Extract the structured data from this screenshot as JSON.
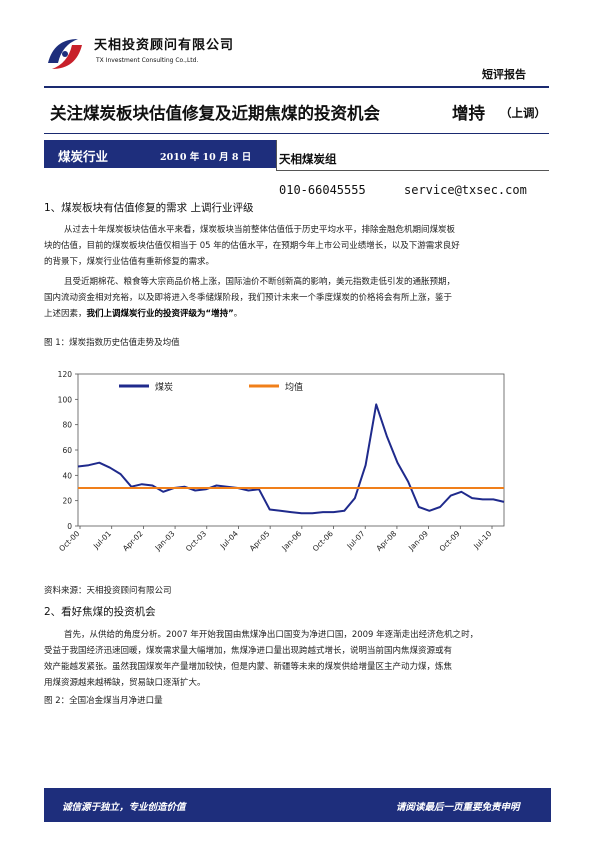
{
  "header": {
    "company_cn": "天相投资顾问有限公司",
    "company_en": "TX Investment Consulting Co.,Ltd.",
    "report_type": "短评报告"
  },
  "title": {
    "text": "关注煤炭板块估值修复及近期焦煤的投资机会",
    "rating": "增持",
    "rating_change": "（上调）"
  },
  "banner": {
    "industry": "煤炭行业",
    "date": "2010 年 10 月 8 日",
    "team": "天相煤炭组",
    "phone": "010-66045555",
    "email": "service@txsec.com"
  },
  "section1": {
    "heading": "1、煤炭板块有估值修复的需求  上调行业评级",
    "para1": [
      "从过去十年煤炭板块估值水平来看，煤炭板块当前整体估值低于历史平均水平，排除金融危机期间煤炭板",
      "块的估值，目前的煤炭板块估值仅相当于 05 年的估值水平，在预期今年上市公司业绩增长，以及下游需求良好",
      "的背景下，煤炭行业估值有重新修复的需求。"
    ],
    "para2_lines": [
      "且受近期棉花、粮食等大宗商品价格上涨，国际油价不断创新高的影响，美元指数走低引发的通胀预期，",
      "国内流动资金相对充裕，以及即将进入冬季储煤阶段，我们预计未来一个季度煤炭的价格将会有所上涨，鉴于"
    ],
    "para2_last_plain": "上述因素，",
    "para2_last_bold": "我们上调煤炭行业的投资评级为“增持”",
    "para2_last_end": "。"
  },
  "figure1": {
    "caption": "图 1：煤炭指数历史估值走势及均值",
    "source": "资料来源：天相投资顾问有限公司"
  },
  "section2": {
    "heading": "2、看好焦煤的投资机会",
    "para": [
      "首先，从供给的角度分析。2007 年开始我国由焦煤净出口国变为净进口国，2009 年逐渐走出经济危机之时，",
      "受益于我国经济迅速回暖，煤炭需求量大幅增加，焦煤净进口量出现跨越式增长，说明当前国内焦煤资源或有",
      "效产能越发紧张。虽然我国煤炭年产量增加较快，但是内蒙、新疆等未来的煤炭供给增量区主产动力煤，炼焦",
      "用煤资源越来越稀缺，贸易缺口逐渐扩大。"
    ]
  },
  "figure2": {
    "caption": "图 2：全国冶金煤当月净进口量"
  },
  "footer": {
    "left": "诚信源于独立，专业创造价值",
    "right": "请阅读最后一页重要免责申明"
  },
  "colors": {
    "brand_navy": "#1e2e7c",
    "series_index": "#1f2a8c",
    "series_mean": "#f07f1a"
  },
  "chart_data": {
    "type": "line",
    "title": "",
    "xlabel": "",
    "ylabel": "",
    "ylim": [
      0,
      120
    ],
    "yticks": [
      0,
      20,
      40,
      60,
      80,
      100,
      120
    ],
    "grid": false,
    "legend_position": "top",
    "x_tick_labels": [
      "Oct-00",
      "Jul-01",
      "Apr-02",
      "Jan-03",
      "Oct-03",
      "Jul-04",
      "Apr-05",
      "Jan-06",
      "Oct-06",
      "Jul-07",
      "Apr-08",
      "Jan-09",
      "Oct-09",
      "Jul-10"
    ],
    "x": [
      "Oct-00",
      "Jan-01",
      "Apr-01",
      "Jul-01",
      "Oct-01",
      "Jan-02",
      "Apr-02",
      "Jul-02",
      "Oct-02",
      "Jan-03",
      "Apr-03",
      "Jul-03",
      "Oct-03",
      "Jan-04",
      "Apr-04",
      "Jul-04",
      "Oct-04",
      "Jan-05",
      "Apr-05",
      "Jul-05",
      "Oct-05",
      "Jan-06",
      "Apr-06",
      "Jul-06",
      "Oct-06",
      "Jan-07",
      "Apr-07",
      "Jul-07",
      "Oct-07",
      "Jan-08",
      "Apr-08",
      "Jul-08",
      "Oct-08",
      "Jan-09",
      "Apr-09",
      "Jul-09",
      "Oct-09",
      "Jan-10",
      "Apr-10",
      "Jul-10",
      "Oct-10"
    ],
    "series": [
      {
        "name": "煤炭",
        "values": [
          47,
          48,
          50,
          46,
          41,
          31,
          33,
          32,
          27,
          30,
          31,
          28,
          29,
          32,
          31,
          30,
          28,
          29,
          13,
          12,
          11,
          10,
          10,
          11,
          11,
          12,
          22,
          48,
          96,
          71,
          50,
          35,
          15,
          12,
          15,
          24,
          27,
          22,
          21,
          21,
          19
        ]
      },
      {
        "name": "均值",
        "values": [
          30,
          30,
          30,
          30,
          30,
          30,
          30,
          30,
          30,
          30,
          30,
          30,
          30,
          30,
          30,
          30,
          30,
          30,
          30,
          30,
          30,
          30,
          30,
          30,
          30,
          30,
          30,
          30,
          30,
          30,
          30,
          30,
          30,
          30,
          30,
          30,
          30,
          30,
          30,
          30,
          30
        ]
      }
    ]
  }
}
